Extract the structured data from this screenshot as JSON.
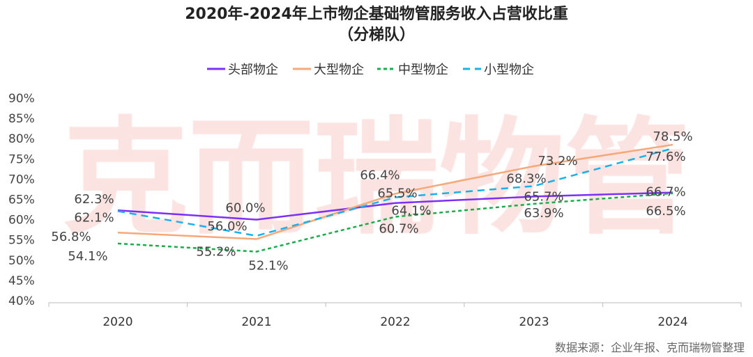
{
  "chart_data": {
    "type": "line",
    "title": "2020年-2024年上市物企基础物管服务收入占营收比重",
    "subtitle": "（分梯队）",
    "categories": [
      "2020",
      "2021",
      "2022",
      "2023",
      "2024"
    ],
    "ylim": [
      40,
      90
    ],
    "yticks": [
      "40%",
      "45%",
      "50%",
      "55%",
      "60%",
      "65%",
      "70%",
      "75%",
      "80%",
      "85%",
      "90%"
    ],
    "grid": false,
    "legend_position": "top",
    "series": [
      {
        "name": "头部物企",
        "values": [
          62.3,
          60.0,
          64.1,
          65.7,
          66.7
        ],
        "labels": [
          "62.3%",
          "60.0%",
          "64.1%",
          "65.7%",
          "66.7%"
        ],
        "color": "#7b2ff7",
        "dash": "solid"
      },
      {
        "name": "大型物企",
        "values": [
          56.8,
          55.2,
          66.4,
          73.2,
          78.5
        ],
        "labels": [
          "56.8%",
          "55.2%",
          "66.4%",
          "73.2%",
          "78.5%"
        ],
        "color": "#f5a878",
        "dash": "solid"
      },
      {
        "name": "中型物企",
        "values": [
          54.1,
          52.1,
          60.7,
          63.9,
          66.5
        ],
        "labels": [
          "54.1%",
          "52.1%",
          "60.7%",
          "63.9%",
          "66.5%"
        ],
        "color": "#1aab4a",
        "dash": "dotted"
      },
      {
        "name": "小型物企",
        "values": [
          62.1,
          56.0,
          65.5,
          68.3,
          77.6
        ],
        "labels": [
          "62.1%",
          "56.0%",
          "65.5%",
          "68.3%",
          "77.6%"
        ],
        "color": "#1ab0ea",
        "dash": "dashed"
      }
    ]
  },
  "watermark": "克而瑞物管",
  "source": "数据来源：企业年报、克而瑞物管整理"
}
